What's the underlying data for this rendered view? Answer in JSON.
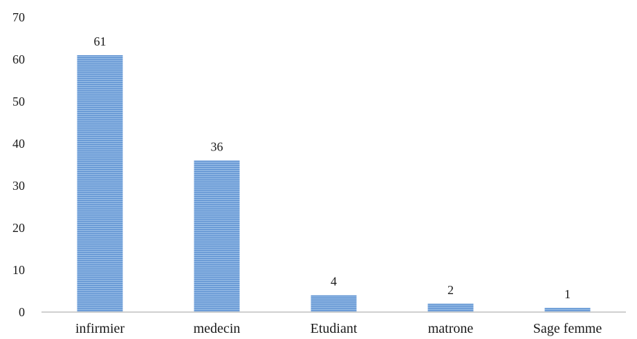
{
  "chart_data": {
    "type": "bar",
    "title": "",
    "xlabel": "",
    "ylabel": "",
    "categories": [
      "infirmier",
      "medecin",
      "Etudiant",
      "matrone",
      "Sage femme"
    ],
    "values": [
      61,
      36,
      4,
      2,
      1
    ],
    "data_labels": [
      "61",
      "36",
      "4",
      "2",
      "1"
    ],
    "ylim": [
      0,
      70
    ],
    "yticks": [
      0,
      10,
      20,
      30,
      40,
      50,
      60,
      70
    ],
    "ytick_labels": [
      "0",
      "10",
      "20",
      "30",
      "40",
      "50",
      "60",
      "70"
    ],
    "grid": false,
    "legend": "none",
    "bar_color": "#8cb4e2",
    "bar_stripe_color": "#5b8fd0",
    "axis_color": "#bfbfbf"
  }
}
